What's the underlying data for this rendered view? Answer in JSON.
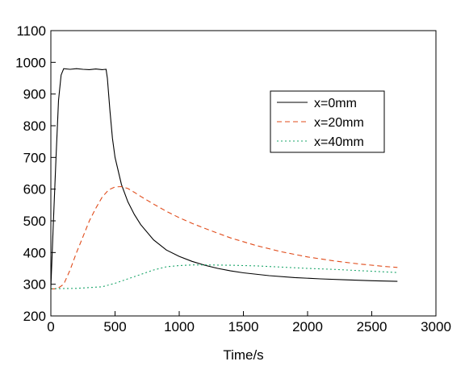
{
  "chart_data": {
    "type": "line",
    "title": "",
    "xlabel": "Time/s",
    "ylabel": "",
    "xlim": [
      0,
      3000
    ],
    "ylim": [
      200,
      1100
    ],
    "xticks": [
      0,
      500,
      1000,
      1500,
      2000,
      2500,
      3000
    ],
    "yticks": [
      200,
      300,
      400,
      500,
      600,
      700,
      800,
      900,
      1000,
      1100
    ],
    "grid": false,
    "legend_position": "top-right",
    "series": [
      {
        "name": "x=0mm",
        "color": "#000000",
        "dash": "solid",
        "x": [
          0,
          20,
          40,
          60,
          80,
          100,
          150,
          200,
          250,
          300,
          350,
          400,
          430,
          440,
          460,
          480,
          500,
          550,
          600,
          650,
          700,
          800,
          900,
          1000,
          1100,
          1200,
          1300,
          1400,
          1500,
          1700,
          1900,
          2100,
          2300,
          2500,
          2700
        ],
        "y": [
          290,
          500,
          700,
          880,
          960,
          980,
          978,
          980,
          978,
          977,
          979,
          977,
          978,
          950,
          850,
          760,
          700,
          615,
          560,
          520,
          488,
          440,
          408,
          388,
          372,
          360,
          350,
          342,
          336,
          327,
          321,
          317,
          314,
          311,
          309
        ]
      },
      {
        "name": "x=20mm",
        "color": "#e04b1a",
        "dash": "dashed",
        "x": [
          0,
          50,
          100,
          150,
          200,
          250,
          300,
          350,
          400,
          450,
          500,
          550,
          600,
          650,
          700,
          800,
          900,
          1000,
          1100,
          1200,
          1400,
          1600,
          1800,
          2000,
          2200,
          2400,
          2600,
          2700
        ],
        "y": [
          285,
          286,
          300,
          345,
          400,
          450,
          500,
          540,
          575,
          598,
          607,
          608,
          602,
          590,
          577,
          553,
          530,
          510,
          492,
          476,
          446,
          422,
          402,
          386,
          374,
          364,
          356,
          353
        ]
      },
      {
        "name": "x=40mm",
        "color": "#1aa56a",
        "dash": "dotted",
        "x": [
          0,
          200,
          400,
          500,
          600,
          700,
          800,
          900,
          1000,
          1100,
          1200,
          1400,
          1600,
          1800,
          2000,
          2200,
          2400,
          2600,
          2700
        ],
        "y": [
          286,
          287,
          292,
          303,
          317,
          331,
          345,
          355,
          359,
          361,
          361,
          360,
          358,
          354,
          350,
          347,
          343,
          339,
          337
        ]
      }
    ]
  }
}
